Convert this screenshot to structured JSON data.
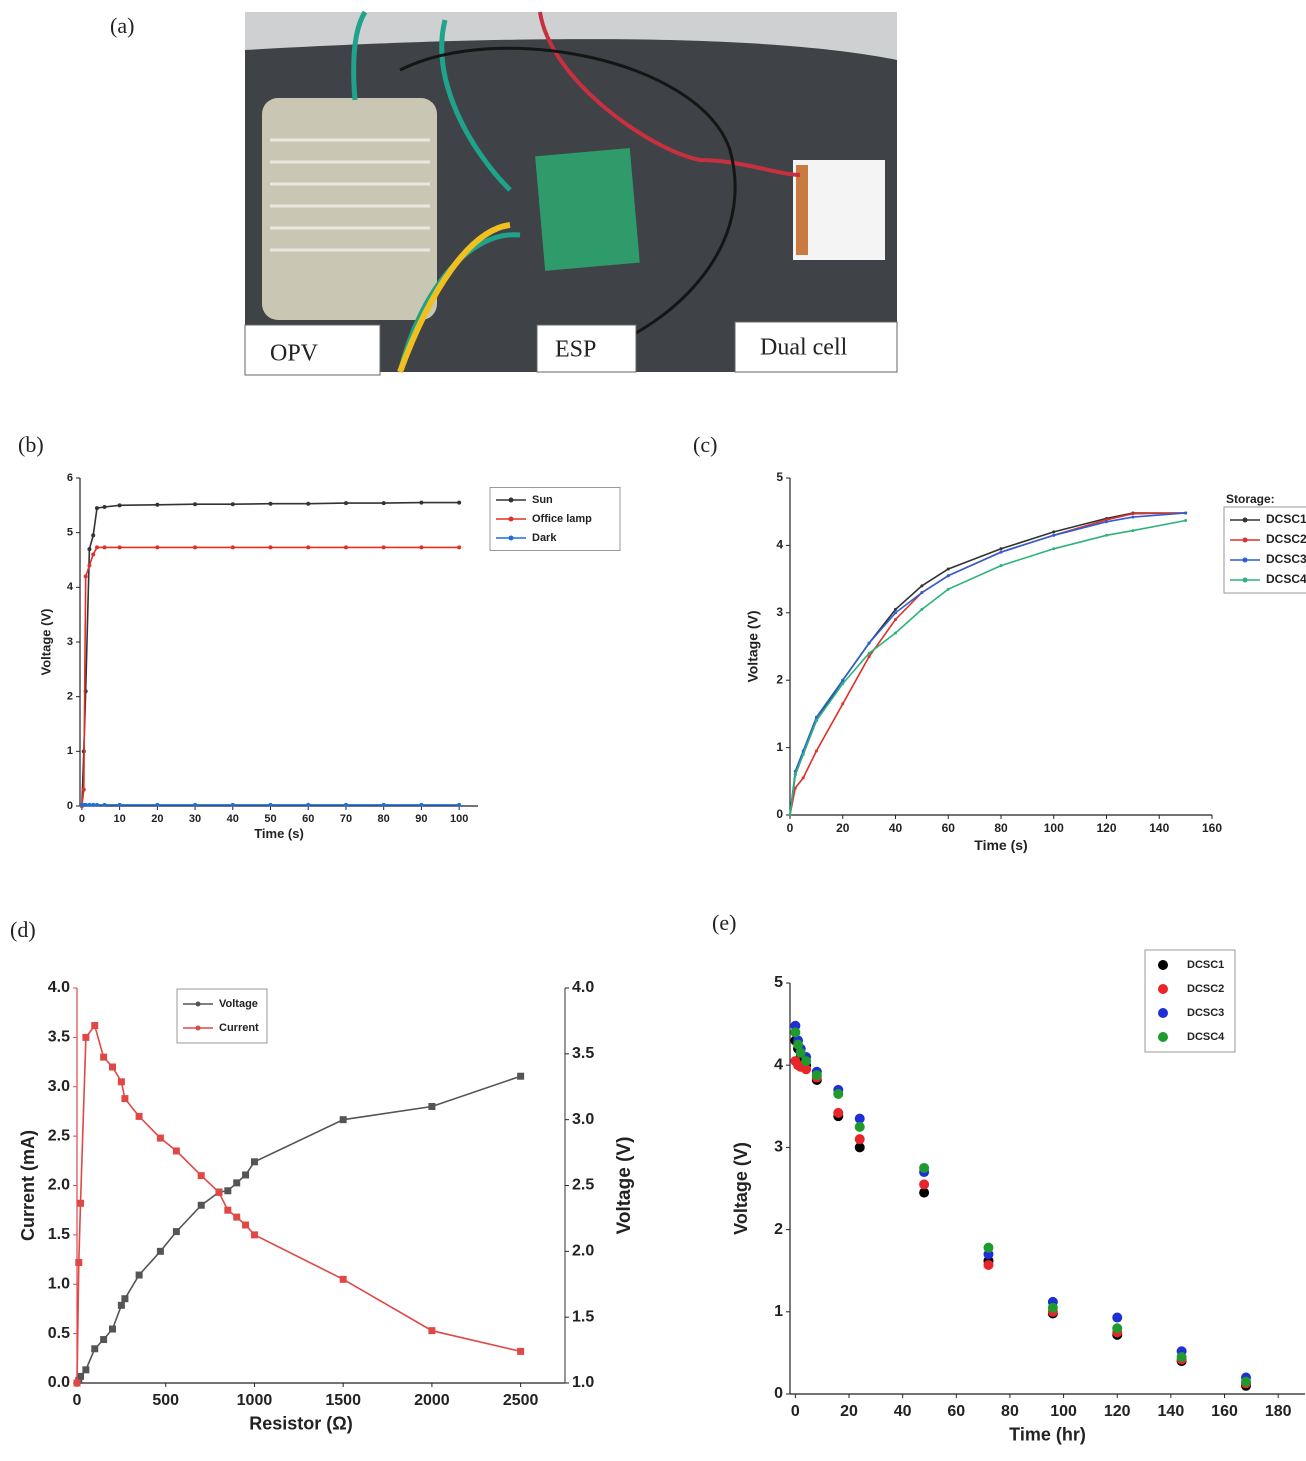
{
  "photo": {
    "label": "(a)",
    "labels": [
      "OPV",
      "ESP",
      "Dual cell"
    ]
  },
  "chart_data": [
    {
      "type": "line",
      "label": "(b)",
      "xlabel": "Time (s)",
      "ylabel": "Voltage (V)",
      "legend": "right",
      "marker": "circle",
      "x": [
        0,
        0.5,
        1,
        2,
        3,
        4,
        6,
        10,
        20,
        30,
        40,
        50,
        60,
        70,
        80,
        90,
        100
      ],
      "series": [
        {
          "name": "Sun",
          "color": "#333333",
          "values": [
            0,
            1,
            2.1,
            4.7,
            4.95,
            5.45,
            5.47,
            5.5,
            5.51,
            5.52,
            5.52,
            5.53,
            5.53,
            5.54,
            5.54,
            5.55,
            5.55
          ]
        },
        {
          "name": "Office lamp",
          "color": "#e0302a",
          "values": [
            0,
            0.3,
            4.2,
            4.4,
            4.6,
            4.73,
            4.73,
            4.73,
            4.73,
            4.73,
            4.73,
            4.73,
            4.73,
            4.73,
            4.73,
            4.73,
            4.73
          ]
        },
        {
          "name": "Dark",
          "color": "#1f6fd6",
          "values": [
            0.02,
            0.02,
            0.02,
            0.02,
            0.02,
            0.02,
            0.02,
            0.02,
            0.02,
            0.02,
            0.02,
            0.02,
            0.02,
            0.02,
            0.02,
            0.02,
            0.02
          ]
        }
      ],
      "xlim": [
        -0.5,
        105
      ],
      "ylim": [
        0,
        6
      ],
      "xticks": [
        0,
        10,
        20,
        30,
        40,
        50,
        60,
        70,
        80,
        90,
        100
      ],
      "yticks": [
        0,
        1,
        2,
        3,
        4,
        5,
        6
      ]
    },
    {
      "type": "line",
      "label": "(c)",
      "xlabel": "Time (s)",
      "ylabel": "Voltage (V)",
      "legend": "right",
      "legend_title": "Storage:",
      "x": [
        0,
        2,
        5,
        10,
        20,
        30,
        40,
        50,
        60,
        80,
        100,
        120,
        130,
        150
      ],
      "series": [
        {
          "name": "DCSC1",
          "color": "#333333",
          "values": [
            0,
            0.6,
            0.9,
            1.4,
            2.0,
            2.55,
            3.05,
            3.4,
            3.65,
            3.95,
            4.2,
            4.4,
            4.48,
            4.48
          ]
        },
        {
          "name": "DCSC2",
          "color": "#e0302a",
          "values": [
            0,
            0.4,
            0.55,
            0.95,
            1.65,
            2.35,
            2.9,
            3.3,
            3.55,
            3.9,
            4.15,
            4.38,
            4.47,
            4.48
          ]
        },
        {
          "name": "DCSC3",
          "color": "#2a5fd6",
          "values": [
            0,
            0.65,
            0.95,
            1.45,
            2.0,
            2.55,
            3.0,
            3.3,
            3.55,
            3.9,
            4.15,
            4.35,
            4.42,
            4.48
          ]
        },
        {
          "name": "DCSC4",
          "color": "#2db37a",
          "values": [
            0,
            0.6,
            0.9,
            1.4,
            1.95,
            2.4,
            2.7,
            3.05,
            3.35,
            3.7,
            3.95,
            4.15,
            4.22,
            4.37
          ]
        }
      ],
      "xlim": [
        0,
        160
      ],
      "ylim": [
        0,
        5
      ],
      "xticks": [
        0,
        20,
        40,
        60,
        80,
        100,
        120,
        140,
        160
      ],
      "yticks": [
        0,
        1,
        2,
        3,
        4,
        5
      ]
    },
    {
      "type": "line",
      "label": "(d)",
      "xlabel": "Resistor (Ω)",
      "ylabel": "Current (mA)",
      "y2label": "Voltage (V)",
      "legend": "upper left",
      "marker": "square",
      "x": [
        0,
        10,
        20,
        50,
        100,
        150,
        200,
        250,
        270,
        350,
        470,
        560,
        700,
        800,
        850,
        900,
        950,
        1000,
        1500,
        2000,
        2500
      ],
      "series": [
        {
          "name": "Voltage",
          "color": "#555555",
          "axis": "y2",
          "values": [
            1.0,
            1.02,
            1.05,
            1.1,
            1.26,
            1.33,
            1.41,
            1.59,
            1.64,
            1.82,
            2.0,
            2.15,
            2.35,
            2.45,
            2.46,
            2.52,
            2.58,
            2.68,
            3.0,
            3.1,
            3.33
          ]
        },
        {
          "name": "Current",
          "color": "#e04848",
          "values": [
            0,
            1.22,
            1.82,
            3.5,
            3.62,
            3.3,
            3.2,
            3.05,
            2.88,
            2.7,
            2.48,
            2.35,
            2.1,
            1.93,
            1.75,
            1.68,
            1.6,
            1.5,
            1.05,
            0.53,
            0.32
          ]
        }
      ],
      "xlim": [
        0,
        2750
      ],
      "ylim": [
        0,
        4
      ],
      "y2lim": [
        1,
        4
      ],
      "xticks": [
        0,
        500,
        1000,
        1500,
        2000,
        2500
      ],
      "yticks": [
        {
          "value": 0,
          "label": "0.0"
        },
        {
          "value": 0.5,
          "label": "0.5"
        },
        {
          "value": 1,
          "label": "1.0"
        },
        {
          "value": 1.5,
          "label": "1.5"
        },
        {
          "value": 2,
          "label": "2.0"
        },
        {
          "value": 2.5,
          "label": "2.5"
        },
        {
          "value": 3,
          "label": "3.0"
        },
        {
          "value": 3.5,
          "label": "3.5"
        },
        {
          "value": 4,
          "label": "4.0"
        }
      ],
      "y2ticks": [
        {
          "value": 1,
          "label": "1.0"
        },
        {
          "value": 1.5,
          "label": "1.5"
        },
        {
          "value": 2,
          "label": "2.0"
        },
        {
          "value": 2.5,
          "label": "2.5"
        },
        {
          "value": 3,
          "label": "3.0"
        },
        {
          "value": 3.5,
          "label": "3.5"
        },
        {
          "value": 4,
          "label": "4.0"
        }
      ]
    },
    {
      "type": "scatter",
      "label": "(e)",
      "xlabel": "Time (hr)",
      "ylabel": "Voltage (V)",
      "legend": "upper right",
      "x": [
        0,
        1,
        2,
        4,
        8,
        16,
        24,
        48,
        72,
        96,
        120,
        144,
        168
      ],
      "series": [
        {
          "name": "DCSC1",
          "color": "#000000",
          "values": [
            4.3,
            4.2,
            4.1,
            4.0,
            3.82,
            3.38,
            3.0,
            2.45,
            1.62,
            0.98,
            0.72,
            0.4,
            0.1
          ]
        },
        {
          "name": "DCSC2",
          "color": "#e8262a",
          "values": [
            4.05,
            4.0,
            3.98,
            3.95,
            3.85,
            3.42,
            3.1,
            2.55,
            1.57,
            1.0,
            0.75,
            0.42,
            0.13
          ]
        },
        {
          "name": "DCSC3",
          "color": "#1f2fd6",
          "values": [
            4.48,
            4.3,
            4.2,
            4.1,
            3.92,
            3.7,
            3.35,
            2.7,
            1.7,
            1.12,
            0.93,
            0.52,
            0.2
          ]
        },
        {
          "name": "DCSC4",
          "color": "#1e9a2e",
          "values": [
            4.4,
            4.25,
            4.15,
            4.05,
            3.88,
            3.65,
            3.25,
            2.75,
            1.78,
            1.05,
            0.8,
            0.45,
            0.15
          ]
        }
      ],
      "xlim": [
        -2,
        190
      ],
      "ylim": [
        0,
        5
      ],
      "xticks": [
        0,
        20,
        40,
        60,
        80,
        100,
        120,
        140,
        160,
        180
      ],
      "yticks": [
        0,
        1,
        2,
        3,
        4,
        5
      ]
    }
  ]
}
